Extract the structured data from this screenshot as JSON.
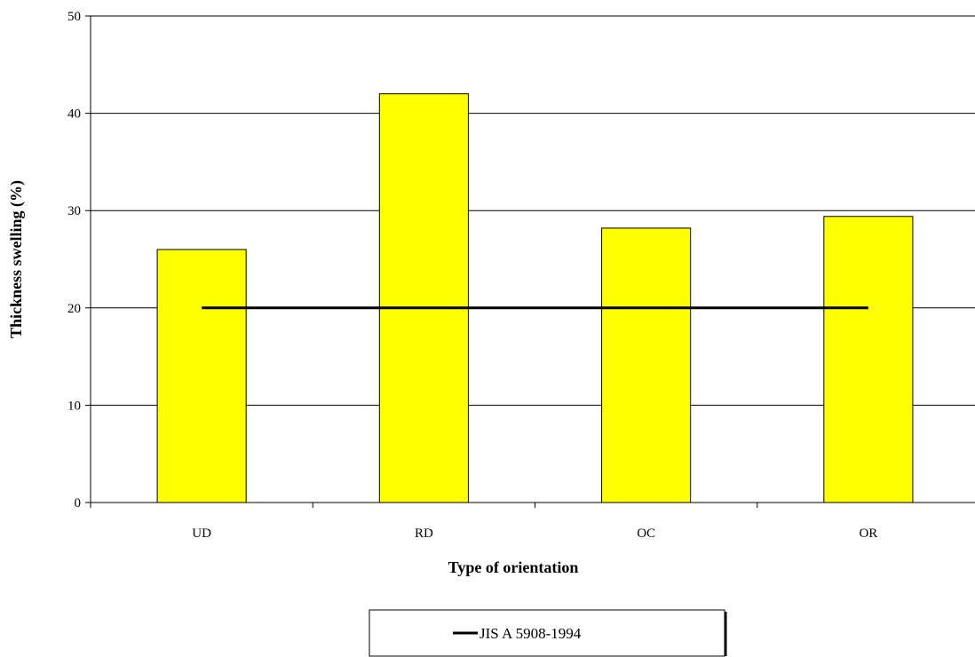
{
  "chart_data": {
    "type": "bar",
    "categories": [
      "UD",
      "RD",
      "OC",
      "OR"
    ],
    "series": [
      {
        "values": [
          26,
          42,
          28.2,
          29.4
        ],
        "color": "#ffff00",
        "edge_color": "#000000"
      }
    ],
    "reference_line": {
      "name": "JIS A 5908-1994",
      "value": 20,
      "color": "#000000"
    },
    "xlabel": "Type of orientation",
    "ylabel": "Thickness swelling (%)",
    "ylim": [
      0,
      50
    ],
    "yticks": [
      0,
      10,
      20,
      30,
      40,
      50
    ],
    "grid": "horizontal",
    "legend": "bottom-center"
  }
}
